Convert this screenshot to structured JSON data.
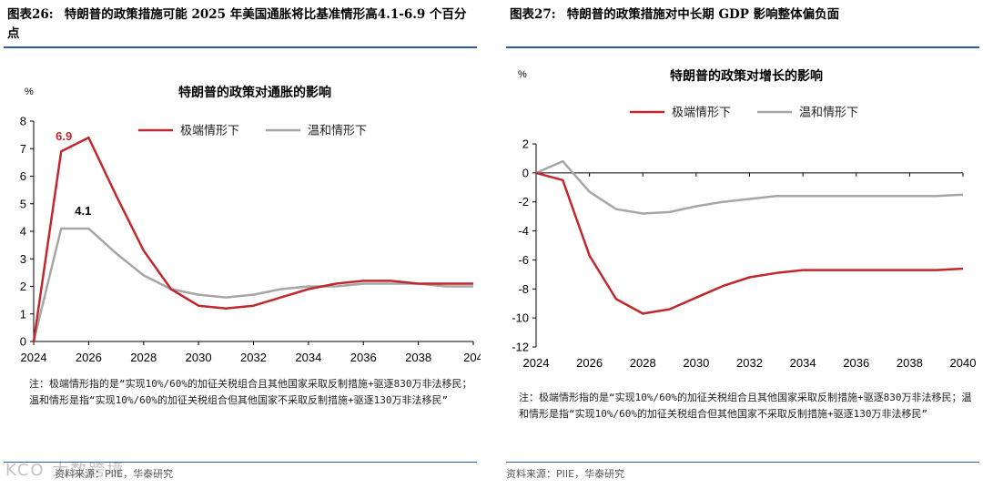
{
  "left": {
    "figure_label": "图表26:",
    "figure_title": "特朗普的政策措施可能 2025 年美国通胀将比基准情形高4.1-6.9 个百分点",
    "note": "注：极端情形指的是“实现10%/60%的加征关税组合且其他国家采取反制措施+驱逐830万非法移民；温和情形是指“实现10%/60%的加征关税组合但其他国家不采取反制措施+驱逐130万非法移民”",
    "source": "资料来源：PIIE，华泰研究",
    "watermark": "KCO 大数跨境"
  },
  "right": {
    "figure_label": "图表27:",
    "figure_title": "特朗普的政策措施对中长期 GDP 影响整体偏负面",
    "note": "注：极端情形指的是“实现10%/60%的加征关税组合且其他国家采取反制措施+驱逐830万非法移民；温和情形是指“实现10%/60%的加征关税组合但其他国家不采取反制措施+驱逐130万非法移民”",
    "source": "资料来源：PIIE，华泰研究"
  },
  "colors": {
    "extreme": "#c0282d",
    "mild": "#a6a6a6",
    "rule": "#2a5aa8"
  },
  "chart_data": [
    {
      "type": "line",
      "title": "特朗普的政策对通胀的影响",
      "unit_label": "%",
      "xlabel": "",
      "ylabel": "",
      "xlim": [
        2024,
        2040
      ],
      "ylim": [
        0,
        8
      ],
      "xticks": [
        "2024",
        "2026",
        "2028",
        "2030",
        "2032",
        "2034",
        "2036",
        "2038",
        "204"
      ],
      "yticks": [
        "0",
        "1",
        "2",
        "3",
        "4",
        "5",
        "6",
        "7",
        "8"
      ],
      "grid": false,
      "legend_position": "top-right",
      "series": [
        {
          "name": "极端情形下",
          "color_key": "extreme",
          "x": [
            2024,
            2025,
            2026,
            2027,
            2028,
            2029,
            2030,
            2031,
            2032,
            2033,
            2034,
            2035,
            2036,
            2037,
            2038,
            2039,
            2040
          ],
          "y": [
            0,
            6.9,
            7.4,
            5.3,
            3.3,
            1.9,
            1.3,
            1.2,
            1.3,
            1.6,
            1.9,
            2.1,
            2.2,
            2.2,
            2.1,
            2.1,
            2.1
          ]
        },
        {
          "name": "温和情形下",
          "color_key": "mild",
          "x": [
            2024,
            2025,
            2026,
            2027,
            2028,
            2029,
            2030,
            2031,
            2032,
            2033,
            2034,
            2035,
            2036,
            2037,
            2038,
            2039,
            2040
          ],
          "y": [
            0,
            4.1,
            4.1,
            3.2,
            2.4,
            1.9,
            1.7,
            1.6,
            1.7,
            1.9,
            2.0,
            2.0,
            2.1,
            2.1,
            2.1,
            2.0,
            2.0
          ]
        }
      ],
      "annotations": [
        {
          "text": "6.9",
          "x": 2025.1,
          "y": 7.3,
          "color_key": "extreme"
        },
        {
          "text": "4.1",
          "x": 2025.8,
          "y": 4.6,
          "color_key": "none"
        }
      ]
    },
    {
      "type": "line",
      "title": "特朗普的政策对增长的影响",
      "unit_label": "%",
      "xlabel": "",
      "ylabel": "",
      "xlim": [
        2024,
        2040
      ],
      "ylim": [
        -12,
        2
      ],
      "xticks": [
        "2024",
        "2026",
        "2028",
        "2030",
        "2032",
        "2034",
        "2036",
        "2038",
        "2040"
      ],
      "yticks": [
        "-12",
        "-10",
        "-8",
        "-6",
        "-4",
        "-2",
        "0",
        "2"
      ],
      "grid": false,
      "legend_position": "top-center",
      "series": [
        {
          "name": "极端情形下",
          "color_key": "extreme",
          "x": [
            2024,
            2025,
            2026,
            2027,
            2028,
            2029,
            2030,
            2031,
            2032,
            2033,
            2034,
            2035,
            2036,
            2037,
            2038,
            2039,
            2040
          ],
          "y": [
            0,
            -0.5,
            -5.7,
            -8.7,
            -9.7,
            -9.4,
            -8.6,
            -7.8,
            -7.2,
            -6.9,
            -6.7,
            -6.7,
            -6.7,
            -6.7,
            -6.7,
            -6.7,
            -6.6
          ]
        },
        {
          "name": "温和情形下",
          "color_key": "mild",
          "x": [
            2024,
            2025,
            2026,
            2027,
            2028,
            2029,
            2030,
            2031,
            2032,
            2033,
            2034,
            2035,
            2036,
            2037,
            2038,
            2039,
            2040
          ],
          "y": [
            0,
            0.8,
            -1.3,
            -2.5,
            -2.8,
            -2.7,
            -2.3,
            -2.0,
            -1.8,
            -1.6,
            -1.6,
            -1.6,
            -1.6,
            -1.6,
            -1.6,
            -1.6,
            -1.5
          ]
        }
      ],
      "annotations": []
    }
  ]
}
